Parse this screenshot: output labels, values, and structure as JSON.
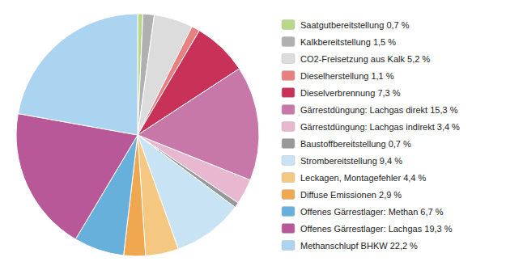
{
  "chart_data": {
    "type": "pie",
    "categories": [
      "Saatgutbereitstellung 0,7 %",
      "Kalkbereitstellung 1,5 %",
      "CO2-Freisetzung aus Kalk 5,2 %",
      "Dieselherstellung 1,1 %",
      "Dieselverbrennung 7,3 %",
      "Gärrestdüngung: Lachgas direkt 15,3 %",
      "Gärrestdüngung: Lachgas indirekt 3,4 %",
      "Baustoffbereitstellung 0,7 %",
      "Strombereitstellung 9,4 %",
      "Leckagen, Montagefehler 4,4 %",
      "Diffuse Emissionen 2,9 %",
      "Offenes Gärrestlager: Methan 6,7 %",
      "Offenes Gärrestlager: Lachgas 19,3 %",
      "Methanschlupf BHKW 22,2 %"
    ],
    "values": [
      0.7,
      1.5,
      5.2,
      1.1,
      7.3,
      15.3,
      3.4,
      0.7,
      9.4,
      4.4,
      2.9,
      6.7,
      19.3,
      22.2
    ],
    "colors": [
      "#b8d98a",
      "#b0b0b0",
      "#dcdcdc",
      "#e88080",
      "#c83258",
      "#c878a8",
      "#e8b8d0",
      "#989898",
      "#c8e4f4",
      "#f5c882",
      "#f0a850",
      "#68b0dc",
      "#b85898",
      "#aad4f0"
    ],
    "legend": "right"
  }
}
